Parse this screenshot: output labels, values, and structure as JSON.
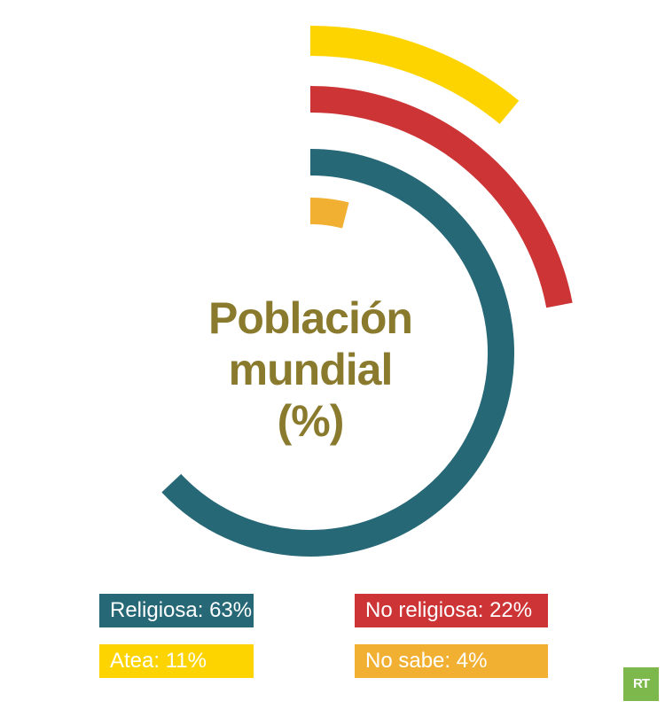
{
  "chart_data": {
    "type": "pie",
    "style": "concentric-radial-bars",
    "title_lines": [
      "Población",
      "mundial",
      "(%)"
    ],
    "categories": [
      "Religiosa",
      "No religiosa",
      "Atea",
      "No sabe"
    ],
    "values": [
      63,
      22,
      11,
      4
    ],
    "unit": "%",
    "colors": [
      "#276877",
      "#cd3436",
      "#fed400",
      "#f1b032"
    ],
    "legend": [
      {
        "label": "Religiosa:",
        "value": "63%",
        "color": "#276877"
      },
      {
        "label": "No religiosa:",
        "value": "22%",
        "color": "#cd3436"
      },
      {
        "label": "Atea:",
        "value": "11%",
        "color": "#fed400"
      },
      {
        "label": "No sabe:",
        "value": "4%",
        "color": "#f1b032"
      }
    ],
    "legend_placement": "bottom"
  },
  "logo": {
    "text": "RT",
    "color": "#7db84d"
  }
}
